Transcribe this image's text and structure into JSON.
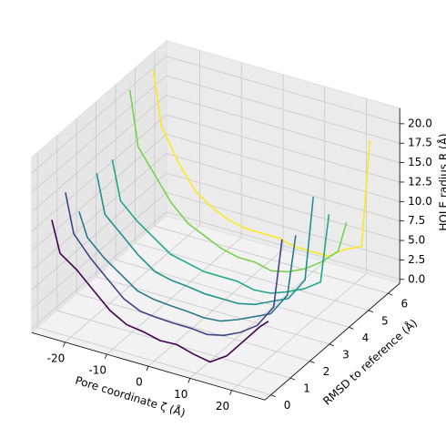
{
  "chart_data": {
    "type": "line3d",
    "xlabel": "Pore coordinate ζ (Å)",
    "ylabel": "RMSD to reference (Å)",
    "zlabel": "HOLE radius R (Å)",
    "x": [
      -26,
      -24,
      -20,
      -16,
      -12,
      -8,
      -4,
      0,
      4,
      8,
      12,
      16,
      20,
      24,
      26
    ],
    "series": [
      {
        "color": "#440154",
        "rmsd": 0.3,
        "values": [
          13,
          9,
          7.5,
          5.5,
          3.5,
          2.3,
          2,
          1.5,
          1.6,
          1,
          0.6,
          2,
          4.5,
          7,
          8
        ]
      },
      {
        "color": "#414487",
        "rmsd": 1.0,
        "values": [
          15,
          10,
          7.5,
          5.5,
          3.5,
          2.5,
          2.3,
          2.2,
          2.2,
          2,
          2.5,
          3.5,
          5,
          8,
          17
        ]
      },
      {
        "color": "#2a788e",
        "rmsd": 1.7,
        "values": [
          11,
          8,
          6,
          4.5,
          3,
          2.5,
          2.3,
          2.2,
          2,
          2.2,
          3,
          4,
          5,
          8,
          16
        ]
      },
      {
        "color": "#21918c",
        "rmsd": 2.6,
        "values": [
          14,
          9,
          7,
          5,
          3.5,
          3,
          2.8,
          2.5,
          2.5,
          2.5,
          3,
          4,
          5,
          8,
          19
        ]
      },
      {
        "color": "#22a884",
        "rmsd": 3.4,
        "values": [
          14,
          9,
          7,
          5.5,
          4,
          3.5,
          3,
          3,
          3,
          2.5,
          2.7,
          3.5,
          4.5,
          6,
          15
        ]
      },
      {
        "color": "#7ad151",
        "rmsd": 4.3,
        "values": [
          21,
          14,
          11,
          8,
          6,
          5,
          4,
          3.5,
          3.5,
          3,
          3.5,
          4.5,
          6,
          8,
          12
        ]
      },
      {
        "color": "#fde725",
        "rmsd": 5.5,
        "values": [
          21,
          14,
          10,
          7,
          5.5,
          4.5,
          4,
          4,
          4,
          3.5,
          3.5,
          3.5,
          5,
          6,
          20
        ]
      }
    ],
    "xlim": [
      -28,
      28
    ],
    "xticks": [
      -20,
      -10,
      0,
      10,
      20
    ],
    "ylim": [
      -0.3,
      6.6
    ],
    "yticks": [
      0,
      1,
      2,
      3,
      4,
      5,
      6
    ],
    "zlim": [
      -0.5,
      22
    ],
    "zticks": [
      {
        "value": 0,
        "label": "0.0"
      },
      2.5,
      {
        "value": 5,
        "label": "5.0"
      },
      7.5,
      {
        "value": 10,
        "label": "10.0"
      },
      12.5,
      {
        "value": 15,
        "label": "15.0"
      },
      17.5,
      {
        "value": 20,
        "label": "20.0"
      }
    ],
    "grid": true
  }
}
